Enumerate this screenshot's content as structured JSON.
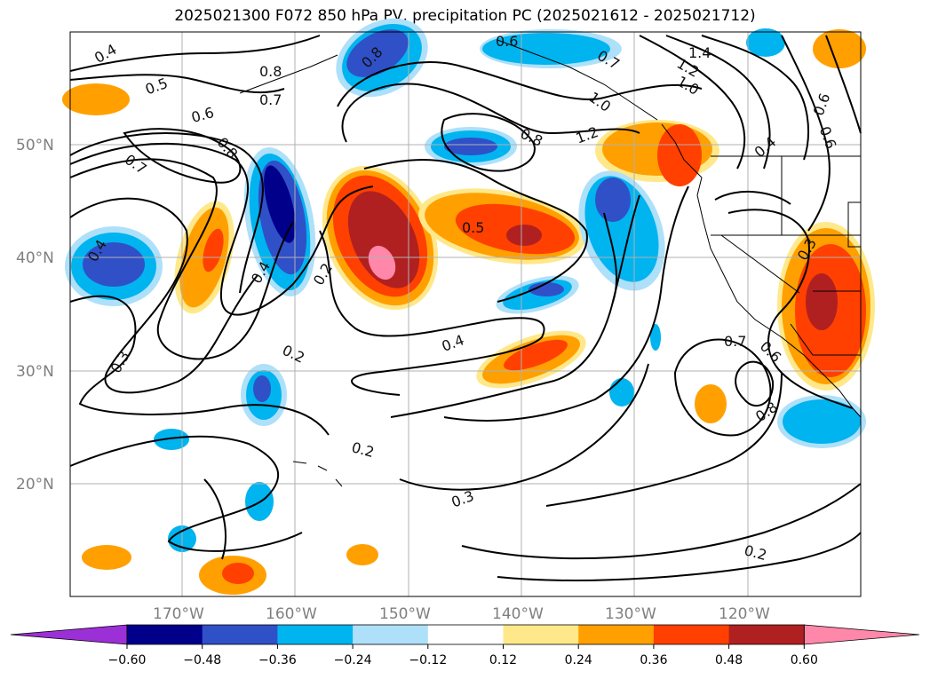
{
  "title": "2025021300 F072 850 hPa PV, precipitation PC (2025021612 - 2025021712)",
  "map": {
    "lon_range": [
      -180,
      -110
    ],
    "lat_range": [
      10,
      60
    ],
    "lat_labels": [
      "50°N",
      "40°N",
      "30°N",
      "20°N"
    ],
    "lon_labels": [
      "170°W",
      "160°W",
      "150°W",
      "140°W",
      "130°W",
      "120°W"
    ],
    "contour_labels": [
      "0.4",
      "0.5",
      "0.8",
      "0.8",
      "0.7",
      "0.6",
      "0.8",
      "0.7",
      "0.6",
      "0.7",
      "1.4",
      "1.2",
      "1.0",
      "1.0",
      "1.2",
      "0.8",
      "0.6",
      "0.6",
      "0.4",
      "0.4",
      "0.4",
      "0.2",
      "0.5",
      "0.4",
      "0.3",
      "0.2",
      "0.7",
      "0.6",
      "0.8",
      "0.2",
      "0.3",
      "0.2",
      "0.3"
    ]
  },
  "colorbar": {
    "ticks": [
      "−0.60",
      "−0.48",
      "−0.36",
      "−0.24",
      "−0.12",
      "0.12",
      "0.24",
      "0.36",
      "0.48",
      "0.60"
    ],
    "colors": [
      "#9b30d6",
      "#00008b",
      "#3050c8",
      "#00b4f0",
      "#aee0fa",
      "#ffffff",
      "#ffe88a",
      "#ffa000",
      "#ff4000",
      "#b02020",
      "#ff88aa"
    ]
  },
  "colors": {
    "blue_dark": "#00008b",
    "blue_mid": "#3050c8",
    "blue_light": "#00b4f0",
    "blue_pale": "#aee0fa",
    "yellow": "#ffe88a",
    "orange": "#ffa000",
    "red_orange": "#ff4000",
    "dark_red": "#b02020",
    "pink": "#ff88aa"
  }
}
